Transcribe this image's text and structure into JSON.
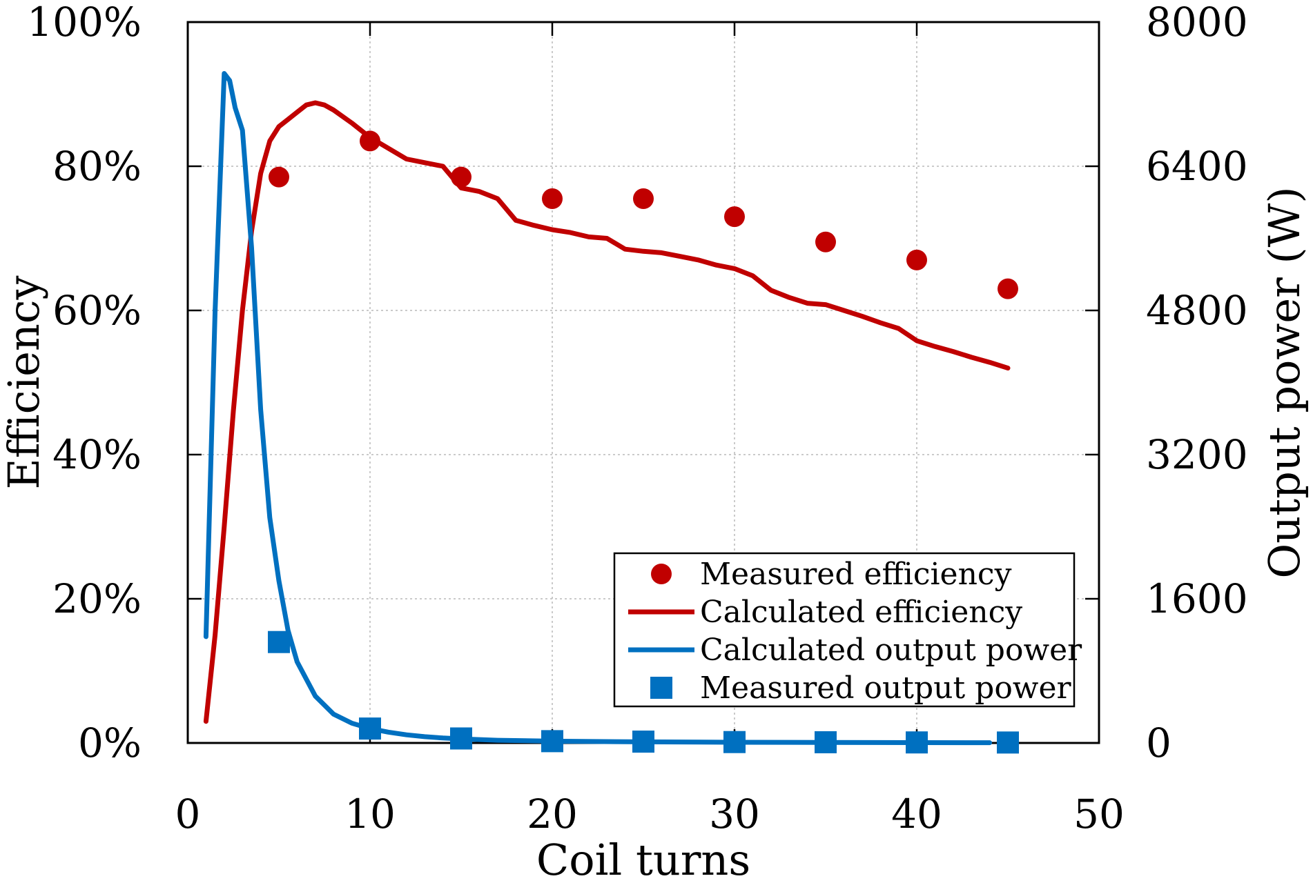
{
  "chart_data": {
    "type": "line",
    "title": "",
    "xlabel": "Coil turns",
    "ylabel_left": "Efficiency",
    "ylabel_right": "Output power (W)",
    "xlim": [
      0,
      50
    ],
    "ylim_left": [
      0,
      100
    ],
    "ylim_right": [
      0,
      8000
    ],
    "x_ticks": [
      "0",
      "10",
      "20",
      "30",
      "40",
      "50"
    ],
    "y_left_ticks": [
      "0%",
      "20%",
      "40%",
      "60%",
      "80%",
      "100%"
    ],
    "y_right_ticks": [
      "0",
      "1600",
      "3200",
      "4800",
      "6400",
      "8000"
    ],
    "grid": true,
    "legend_position": "bottom-right",
    "colors": {
      "efficiency": "#c00000",
      "power": "#0070c0"
    },
    "series": [
      {
        "name": "Measured efficiency",
        "kind": "scatter",
        "marker": "circle",
        "axis": "left",
        "color": "#c00000",
        "x": [
          5,
          10,
          15,
          20,
          25,
          30,
          35,
          40,
          45
        ],
        "y": [
          78.5,
          83.5,
          78.5,
          75.5,
          75.5,
          73,
          69.5,
          67,
          63
        ]
      },
      {
        "name": "Calculated efficiency",
        "kind": "line",
        "axis": "left",
        "color": "#c00000",
        "x": [
          1,
          1.5,
          2,
          2.5,
          3,
          3.5,
          4,
          4.5,
          5,
          5.5,
          6,
          6.5,
          7,
          7.5,
          8,
          9,
          10,
          11,
          12,
          13,
          14,
          15,
          16,
          17,
          18,
          19,
          20,
          21,
          22,
          23,
          24,
          25,
          26,
          27,
          28,
          29,
          30,
          31,
          32,
          33,
          34,
          35,
          36,
          37,
          38,
          39,
          40,
          41,
          42,
          43,
          44,
          45
        ],
        "y": [
          3,
          15,
          30,
          46,
          60,
          71,
          79,
          83.5,
          85.5,
          86.5,
          87.5,
          88.5,
          88.8,
          88.5,
          87.8,
          86,
          84,
          82.5,
          81,
          80.5,
          80,
          77,
          76.5,
          75.5,
          72.5,
          71.8,
          71.2,
          70.8,
          70.2,
          70,
          68.5,
          68.2,
          68,
          67.5,
          67,
          66.3,
          65.8,
          64.8,
          62.8,
          61.8,
          61,
          60.8,
          60,
          59.2,
          58.3,
          57.5,
          55.8,
          55,
          54.3,
          53.5,
          52.8,
          52
        ]
      },
      {
        "name": "Calculated output power",
        "kind": "line",
        "axis": "right",
        "color": "#0070c0",
        "x": [
          1,
          1.5,
          2,
          2.3,
          2.6,
          3,
          3.5,
          4,
          4.5,
          5,
          5.5,
          6,
          7,
          8,
          9,
          10,
          11,
          12,
          13,
          14,
          15,
          17,
          20,
          25,
          30,
          35,
          40,
          44
        ],
        "y": [
          1180,
          4800,
          7430,
          7350,
          7050,
          6800,
          5500,
          3700,
          2500,
          1800,
          1250,
          900,
          520,
          320,
          220,
          160,
          120,
          90,
          70,
          55,
          45,
          30,
          20,
          12,
          8,
          6,
          4,
          3
        ]
      },
      {
        "name": "Measured output power",
        "kind": "scatter",
        "marker": "square",
        "axis": "right",
        "color": "#0070c0",
        "x": [
          5,
          10,
          15,
          20,
          25,
          30,
          35,
          40,
          45
        ],
        "y": [
          1120,
          160,
          50,
          20,
          15,
          10,
          8,
          6,
          5
        ]
      }
    ]
  }
}
